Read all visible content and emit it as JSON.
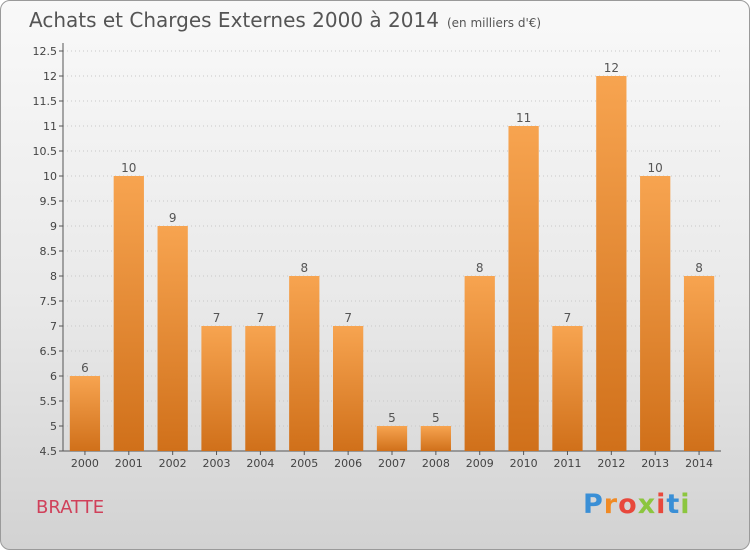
{
  "header": {
    "title": "Achats et Charges Externes 2000 à 2014",
    "unit": "(en milliers d'€)"
  },
  "footer": {
    "place": "BRATTE",
    "logo": "Proxiti"
  },
  "colors": {
    "bar_top": "#f7a450",
    "bar_bottom": "#d0701a",
    "place": "#d0405a"
  },
  "chart_data": {
    "type": "bar",
    "title": "Achats et Charges Externes 2000 à 2014",
    "subtitle": "(en milliers d'€)",
    "categories": [
      "2000",
      "2001",
      "2002",
      "2003",
      "2004",
      "2005",
      "2006",
      "2007",
      "2008",
      "2009",
      "2010",
      "2011",
      "2012",
      "2013",
      "2014"
    ],
    "values": [
      6,
      10,
      9,
      7,
      7,
      8,
      7,
      5,
      5,
      8,
      11,
      7,
      12,
      10,
      8
    ],
    "ylim": [
      4.5,
      12.5
    ],
    "yticks": [
      "4.5",
      "5",
      "5.5",
      "6",
      "6.5",
      "7",
      "7.5",
      "8",
      "8.5",
      "9",
      "9.5",
      "10",
      "10.5",
      "11",
      "11.5",
      "12",
      "12.5"
    ],
    "grid": true
  }
}
